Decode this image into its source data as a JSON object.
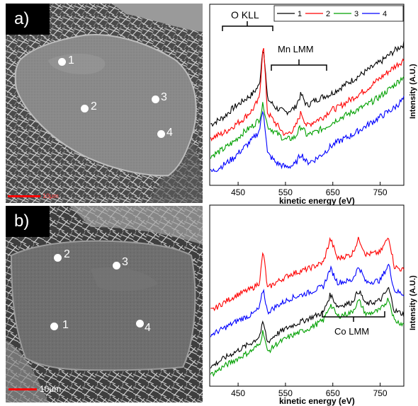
{
  "panel_a": {
    "label": "a)",
    "sem_image": {
      "points": [
        {
          "label": "1"
        },
        {
          "label": "2"
        },
        {
          "label": "3"
        },
        {
          "label": "4"
        }
      ],
      "scalebar_label": "10μm"
    },
    "annotations": {
      "o_kll": "O KLL",
      "mn_lmm": "Mn LMM"
    }
  },
  "panel_b": {
    "label": "b)",
    "sem_image": {
      "points": [
        {
          "label": "1"
        },
        {
          "label": "2"
        },
        {
          "label": "3"
        },
        {
          "label": "4"
        }
      ],
      "scalebar_label": "10μm"
    },
    "annotations": {
      "co_lmm": "Co LMM"
    }
  },
  "chart_data": [
    {
      "type": "line",
      "xlabel": "kinetic energy (eV)",
      "ylabel": "Intensity (A.U.)",
      "xlim": [
        390,
        800
      ],
      "x_ticks": [
        "450",
        "550",
        "650",
        "750"
      ],
      "legend": {
        "placement": "top-right",
        "entries": [
          "1",
          "2",
          "3",
          "4"
        ]
      },
      "series": [
        {
          "name": "1",
          "color": "#000000",
          "x": [
            395,
            420,
            440,
            460,
            480,
            495,
            503,
            512,
            530,
            550,
            570,
            583,
            595,
            610,
            630,
            645,
            660,
            690,
            720,
            750,
            780,
            800
          ],
          "y": [
            5.3,
            5.6,
            6.0,
            6.3,
            6.6,
            7.0,
            8.8,
            6.4,
            6.0,
            5.8,
            6.0,
            6.6,
            6.1,
            6.3,
            6.5,
            6.6,
            6.8,
            7.2,
            7.6,
            8.0,
            8.5,
            8.8
          ]
        },
        {
          "name": "2",
          "color": "#ff0000",
          "x": [
            395,
            420,
            440,
            460,
            480,
            495,
            503,
            512,
            530,
            550,
            570,
            583,
            595,
            610,
            630,
            645,
            660,
            690,
            720,
            750,
            780,
            800
          ],
          "y": [
            4.7,
            4.9,
            5.2,
            5.5,
            5.9,
            6.4,
            8.9,
            5.8,
            5.3,
            4.8,
            5.1,
            5.8,
            5.2,
            5.4,
            5.6,
            5.9,
            6.0,
            6.4,
            6.8,
            7.3,
            7.8,
            8.1
          ]
        },
        {
          "name": "3",
          "color": "#00a000",
          "x": [
            395,
            420,
            440,
            460,
            480,
            495,
            503,
            512,
            530,
            550,
            570,
            583,
            595,
            610,
            630,
            645,
            660,
            690,
            720,
            750,
            780,
            800
          ],
          "y": [
            3.9,
            4.2,
            4.5,
            4.9,
            5.2,
            5.5,
            6.2,
            5.2,
            4.9,
            4.6,
            4.7,
            5.2,
            4.8,
            4.9,
            5.1,
            5.3,
            5.5,
            5.8,
            6.1,
            6.5,
            7.0,
            7.4
          ]
        },
        {
          "name": "4",
          "color": "#0000ff",
          "x": [
            395,
            420,
            440,
            460,
            480,
            495,
            503,
            512,
            530,
            550,
            570,
            583,
            595,
            610,
            630,
            645,
            660,
            690,
            720,
            750,
            780,
            800
          ],
          "y": [
            3.2,
            3.5,
            3.8,
            4.2,
            4.6,
            5.0,
            6.0,
            4.0,
            3.6,
            3.4,
            3.5,
            4.0,
            3.6,
            3.7,
            4.0,
            4.3,
            4.5,
            4.8,
            5.2,
            5.6,
            6.0,
            6.4
          ]
        }
      ],
      "grid": false
    },
    {
      "type": "line",
      "xlabel": "kinetic energy (eV)",
      "ylabel": "Intensity (A.U.)",
      "xlim": [
        390,
        800
      ],
      "x_ticks": [
        "450",
        "550",
        "650",
        "750"
      ],
      "series": [
        {
          "name": "",
          "color": "#ff0000",
          "x": [
            395,
            420,
            450,
            480,
            495,
            503,
            512,
            530,
            560,
            600,
            630,
            645,
            660,
            690,
            705,
            720,
            750,
            768,
            780,
            800
          ],
          "y": [
            6.2,
            6.6,
            7.0,
            7.3,
            7.6,
            9.2,
            7.3,
            7.6,
            8.0,
            8.3,
            8.6,
            9.8,
            8.8,
            9.0,
            9.8,
            9.0,
            9.1,
            9.9,
            8.4,
            8.2
          ]
        },
        {
          "name": "",
          "color": "#0000ff",
          "x": [
            395,
            420,
            450,
            480,
            495,
            503,
            512,
            530,
            560,
            600,
            630,
            645,
            660,
            690,
            705,
            720,
            750,
            768,
            780,
            800
          ],
          "y": [
            5.0,
            5.3,
            5.7,
            6.0,
            6.3,
            7.3,
            6.1,
            6.4,
            6.8,
            7.1,
            7.4,
            8.3,
            7.6,
            7.7,
            8.4,
            7.6,
            7.7,
            8.5,
            7.2,
            7.0
          ]
        },
        {
          "name": "",
          "color": "#000000",
          "x": [
            395,
            420,
            450,
            480,
            495,
            503,
            512,
            530,
            560,
            600,
            630,
            645,
            660,
            690,
            705,
            720,
            750,
            768,
            780,
            800
          ],
          "y": [
            3.4,
            3.8,
            4.2,
            4.6,
            4.9,
            5.6,
            4.6,
            5.0,
            5.4,
            5.8,
            6.1,
            7.0,
            6.4,
            6.6,
            7.2,
            6.5,
            6.7,
            7.3,
            6.2,
            6.0
          ]
        },
        {
          "name": "",
          "color": "#00a000",
          "x": [
            395,
            420,
            450,
            480,
            495,
            503,
            512,
            530,
            560,
            600,
            630,
            645,
            660,
            690,
            705,
            720,
            750,
            768,
            780,
            800
          ],
          "y": [
            3.0,
            3.4,
            3.8,
            4.2,
            4.5,
            5.2,
            4.1,
            4.5,
            4.9,
            5.3,
            5.7,
            6.5,
            5.9,
            6.1,
            6.7,
            6.0,
            6.2,
            6.8,
            5.7,
            5.5
          ]
        }
      ],
      "grid": false
    }
  ]
}
